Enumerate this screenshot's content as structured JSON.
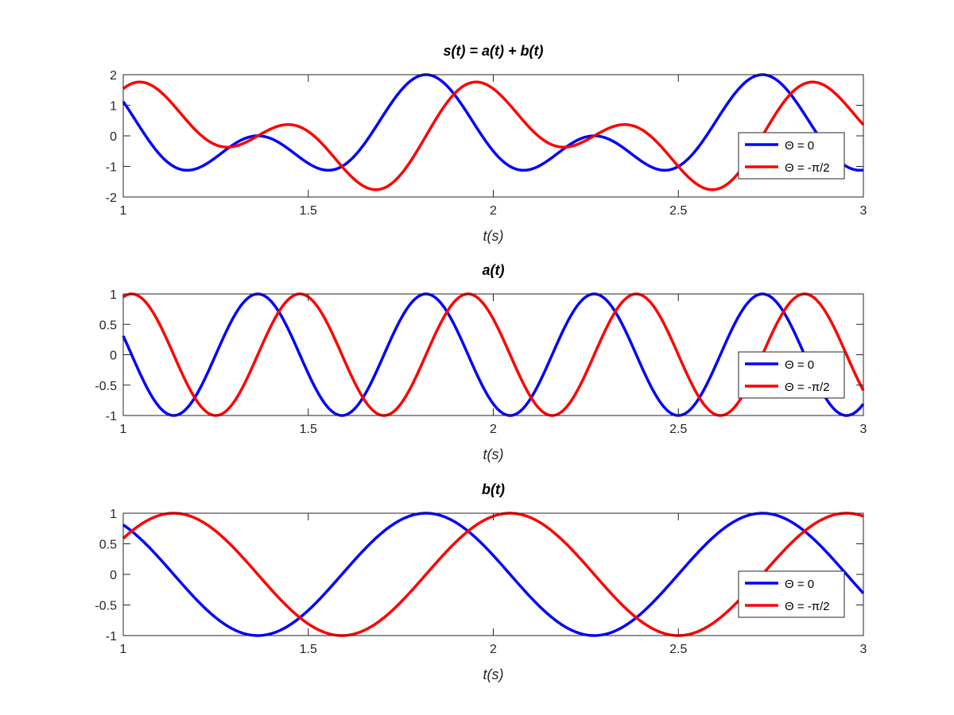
{
  "chart_data": [
    {
      "type": "line",
      "title": "s(t) = a(t) + b(t)",
      "xlabel": "t(s)",
      "ylabel": "",
      "xlim": [
        1,
        3
      ],
      "ylim": [
        -2,
        2
      ],
      "xticks": [
        "1",
        "1.5",
        "2",
        "2.5",
        "3"
      ],
      "yticks": [
        "-2",
        "-1",
        "0",
        "1",
        "2"
      ],
      "function": "cos(2π·2.2·t + Θ) + cos(2π·1.1·t + Θ)",
      "series": [
        {
          "name": "Θ = 0",
          "color": "#0000ff",
          "theta": 0
        },
        {
          "name": "Θ = -π/2",
          "color": "#ff0000",
          "theta": -1.5707963
        }
      ],
      "legend": "right"
    },
    {
      "type": "line",
      "title": "a(t)",
      "xlabel": "t(s)",
      "ylabel": "",
      "xlim": [
        1,
        3
      ],
      "ylim": [
        -1,
        1
      ],
      "xticks": [
        "1",
        "1.5",
        "2",
        "2.5",
        "3"
      ],
      "yticks": [
        "-1",
        "-0.5",
        "0",
        "0.5",
        "1"
      ],
      "function": "cos(2π·2.2·t + Θ)",
      "series": [
        {
          "name": "Θ = 0",
          "color": "#0000ff",
          "theta": 0
        },
        {
          "name": "Θ = -π/2",
          "color": "#ff0000",
          "theta": -1.5707963
        }
      ],
      "legend": "right"
    },
    {
      "type": "line",
      "title": "b(t)",
      "xlabel": "t(s)",
      "ylabel": "",
      "xlim": [
        1,
        3
      ],
      "ylim": [
        -1,
        1
      ],
      "xticks": [
        "1",
        "1.5",
        "2",
        "2.5",
        "3"
      ],
      "yticks": [
        "-1",
        "-0.5",
        "0",
        "0.5",
        "1"
      ],
      "function": "cos(2π·1.1·t + Θ)",
      "series": [
        {
          "name": "Θ = 0",
          "color": "#0000ff",
          "theta": 0
        },
        {
          "name": "Θ = -π/2",
          "color": "#ff0000",
          "theta": -1.5707963
        }
      ],
      "legend": "right"
    }
  ],
  "components": {
    "s": {
      "a_freq_hz": 2.2,
      "b_freq_hz": 1.1
    },
    "a": {
      "freq_hz": 2.2
    },
    "b": {
      "freq_hz": 1.1
    }
  }
}
